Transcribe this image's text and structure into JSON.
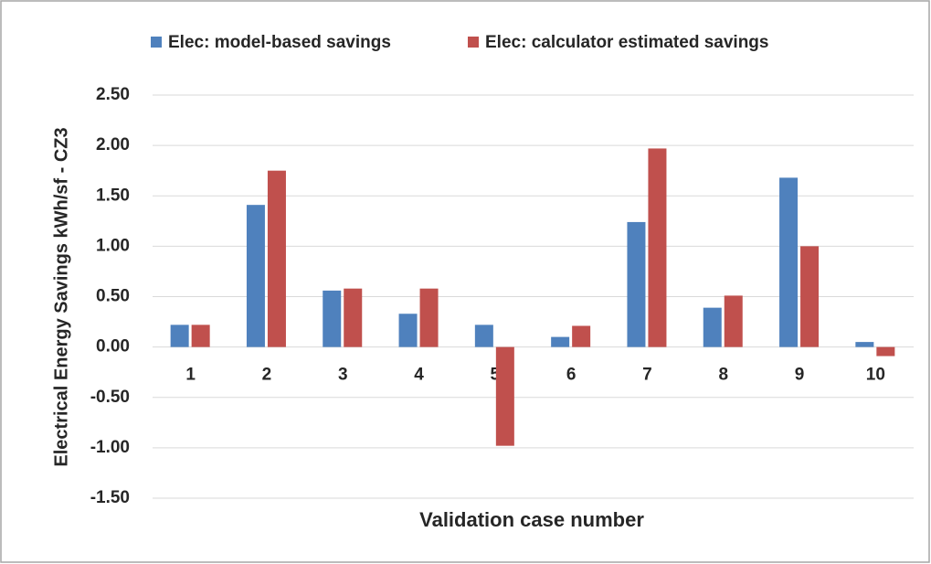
{
  "chart_data": {
    "type": "bar",
    "xlabel": "Validation  case number",
    "ylabel": "Electrical Energy Savings kWh/sf - CZ3",
    "categories": [
      "1",
      "2",
      "3",
      "4",
      "5",
      "6",
      "7",
      "8",
      "9",
      "10"
    ],
    "series": [
      {
        "name": "Elec: model-based savings",
        "color": "#4f81bd",
        "values": [
          0.22,
          1.41,
          0.56,
          0.33,
          0.22,
          0.1,
          1.24,
          0.39,
          1.68,
          0.05
        ]
      },
      {
        "name": "Elec: calculator estimated savings",
        "color": "#c0504d",
        "values": [
          0.22,
          1.75,
          0.58,
          0.58,
          -0.98,
          0.21,
          1.97,
          0.51,
          1.0,
          -0.09
        ]
      }
    ],
    "ylim": [
      -1.5,
      2.5
    ],
    "yticks": [
      {
        "value": 2.5,
        "label": "2.50"
      },
      {
        "value": 2.0,
        "label": "2.00"
      },
      {
        "value": 1.5,
        "label": "1.50"
      },
      {
        "value": 1.0,
        "label": "1.00"
      },
      {
        "value": 0.5,
        "label": "0.50"
      },
      {
        "value": 0,
        "label": "0.00"
      },
      {
        "value": -0.5,
        "label": "-0.50"
      },
      {
        "value": -1.0,
        "label": "-1.00"
      },
      {
        "value": -1.5,
        "label": "-1.50"
      }
    ],
    "grid": true,
    "legend": "top"
  }
}
